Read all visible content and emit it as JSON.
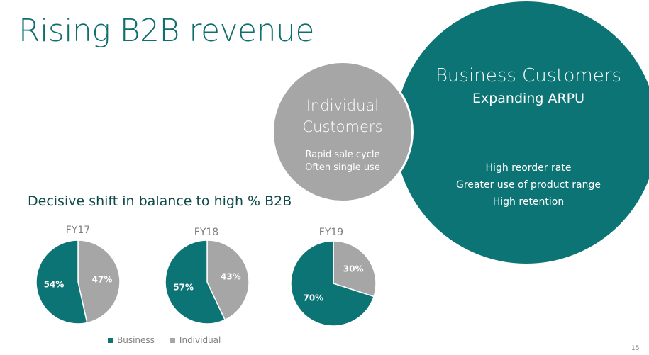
{
  "slide": {
    "title": "Rising B2B revenue",
    "page_number": "15"
  },
  "business": {
    "title": "Business Customers",
    "subtitle": "Expanding ARPU",
    "points": [
      "High reorder rate",
      "Greater use of product range",
      "High retention"
    ]
  },
  "individual": {
    "title_line1": "Individual",
    "title_line2": "Customers",
    "points": [
      "Rapid sale cycle",
      "Often single use"
    ]
  },
  "charts_heading": "Decisive shift in balance to high % B2B",
  "colors": {
    "business": "#0c7475",
    "individual": "#a6a6a6"
  },
  "chart_data": [
    {
      "type": "pie",
      "title": "FY17",
      "series": [
        {
          "name": "Business",
          "value": 54,
          "label": "54%"
        },
        {
          "name": "Individual",
          "value": 47,
          "label": "47%"
        }
      ]
    },
    {
      "type": "pie",
      "title": "FY18",
      "series": [
        {
          "name": "Business",
          "value": 57,
          "label": "57%"
        },
        {
          "name": "Individual",
          "value": 43,
          "label": "43%"
        }
      ]
    },
    {
      "type": "pie",
      "title": "FY19",
      "series": [
        {
          "name": "Business",
          "value": 70,
          "label": "70%"
        },
        {
          "name": "Individual",
          "value": 30,
          "label": "30%"
        }
      ]
    }
  ],
  "legend": [
    {
      "label": "Business",
      "color": "#0c7475"
    },
    {
      "label": "Individual",
      "color": "#a6a6a6"
    }
  ]
}
